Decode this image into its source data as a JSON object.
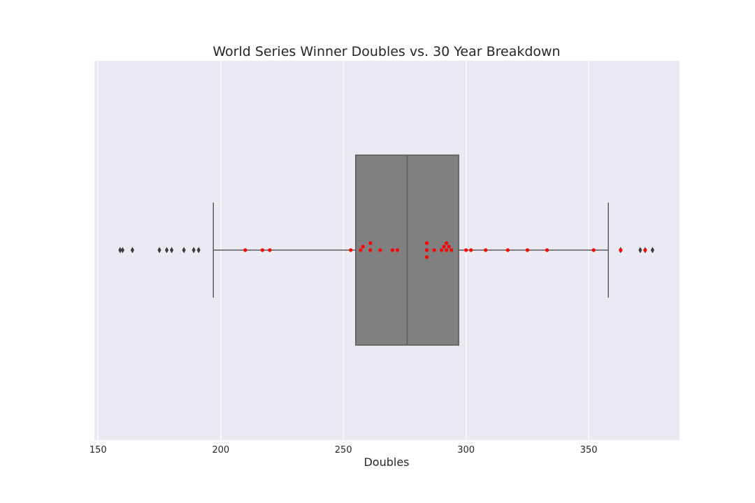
{
  "chart_data": {
    "type": "box",
    "title": "World Series Winner Doubles vs. 30 Year Breakdown",
    "xlabel": "Doubles",
    "ylabel": "",
    "xlim": [
      148.5,
      387
    ],
    "x_ticks": [
      150,
      200,
      250,
      300,
      350
    ],
    "grid": true,
    "box": {
      "q1": 255,
      "median": 276,
      "q3": 297,
      "whisker_low": 197,
      "whisker_high": 358,
      "color": "#808080",
      "outliers": [
        159,
        160,
        164,
        175,
        178,
        180,
        185,
        189,
        191,
        363,
        371,
        373,
        376
      ]
    },
    "winner_points": {
      "color": "#ff0000",
      "values": [
        210,
        217,
        220,
        253,
        257,
        258,
        261,
        261,
        265,
        270,
        272,
        284,
        284,
        284,
        287,
        290,
        291,
        292,
        292,
        293,
        294,
        300,
        302,
        308,
        317,
        325,
        333,
        352,
        363,
        373
      ]
    }
  }
}
